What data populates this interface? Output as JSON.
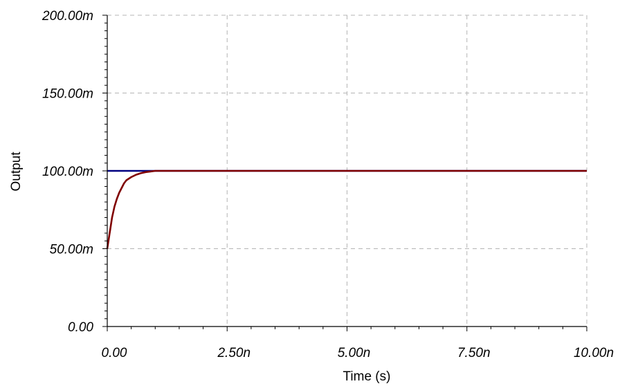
{
  "chart_data": {
    "type": "line",
    "xlabel": "Time (s)",
    "ylabel": "Output",
    "xlim": [
      0,
      10
    ],
    "ylim": [
      0,
      200
    ],
    "x_unit": "ns",
    "y_unit": "mV",
    "x_ticks": [
      {
        "value": 0,
        "label": "0.00"
      },
      {
        "value": 2.5,
        "label": "2.50n"
      },
      {
        "value": 5,
        "label": "5.00n"
      },
      {
        "value": 7.5,
        "label": "7.50n"
      },
      {
        "value": 10,
        "label": "10.00n"
      }
    ],
    "y_ticks": [
      {
        "value": 0,
        "label": "0.00"
      },
      {
        "value": 50,
        "label": "50.00m"
      },
      {
        "value": 100,
        "label": "100.00m"
      },
      {
        "value": 150,
        "label": "150.00m"
      },
      {
        "value": 200,
        "label": "200.00m"
      }
    ],
    "grid": true,
    "series": [
      {
        "color": "#000080",
        "x": [
          0,
          0.5,
          1,
          2.5,
          5,
          7.5,
          10
        ],
        "y": [
          100,
          100,
          100,
          100,
          100,
          100,
          100
        ]
      },
      {
        "color": "#800000",
        "x": [
          0,
          0.05,
          0.1,
          0.15,
          0.2,
          0.25,
          0.3,
          0.35,
          0.4,
          0.5,
          0.6,
          0.7,
          0.8,
          0.9,
          1.0,
          1.5,
          2.5,
          5,
          7.5,
          10
        ],
        "y": [
          50,
          60,
          70,
          77,
          82,
          86,
          89,
          92,
          94,
          96,
          97.5,
          98.5,
          99.2,
          99.6,
          100,
          100,
          100,
          100,
          100,
          100
        ]
      }
    ]
  }
}
